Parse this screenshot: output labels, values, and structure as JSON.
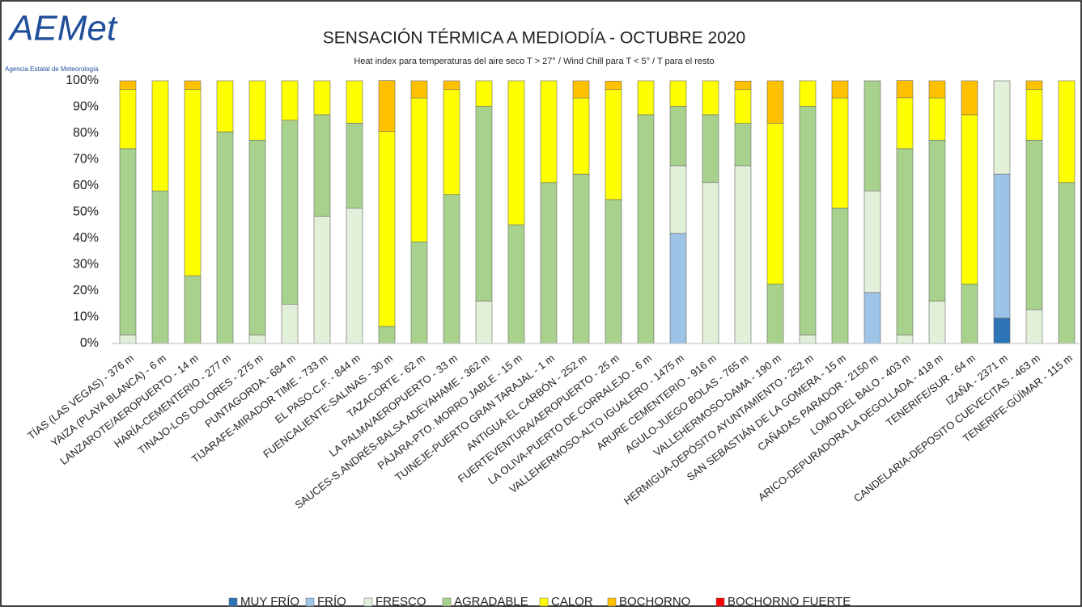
{
  "logo": {
    "name": "AEMet",
    "subtitle": "Agencia Estatal de Meteorología"
  },
  "chart_data": {
    "type": "stacked_bar",
    "title": "SENSACIÓN TÉRMICA A MEDIODÍA - OCTUBRE 2020",
    "subtitle": "Heat index para temperaturas del aire seco T > 27° / Wind Chill para T < 5° / T para el resto",
    "categories": [
      "TÍAS (LAS VEGAS) - 376 m",
      "YAIZA (PLAYA BLANCA) - 6 m",
      "LANZAROTE/AEROPUERTO - 14 m",
      "HARÍA-CEMENTERIO - 277 m",
      "TINAJO-LOS DOLORES - 275 m",
      "PUNTAGORDA - 684 m",
      "TIJARAFE-MIRADOR TIME - 733 m",
      "EL PASO-C.F. - 844 m",
      "FUENCALIENTE-SALINAS - 30 m",
      "TAZACORTE - 62 m",
      "LA PALMA/AEROPUERTO - 33 m",
      "SAUCES-S.ANDRÉS-BALSA ADEYAHAME - 362 m",
      "PÁJARA-PTO. MORRO JABLE - 15 m",
      "TUINEJE-PUERTO GRAN TARAJAL - 1 m",
      "ANTIGUA-EL CARBÓN - 252 m",
      "FUERTEVENTURA/AEROPUERTO - 25 m",
      "LA OLIVA-PUERTO DE CORRALEJO - 6 m",
      "VALLEHERMOSO-ALTO IGUALERO - 1475 m",
      "ARURE CEMENTERIO - 916 m",
      "AGULO-JUEGO BOLAS - 765 m",
      "VALLEHERMOSO-DAMA - 190 m",
      "HERMIGUA-DEPÓSITO AYUNTAMIENTO - 252 m",
      "SAN SEBASTIÁN DE LA GOMERA - 15 m",
      "CAÑADAS PARADOR - 2150 m",
      "LOMO DEL BALO - 403 m",
      "ARICO-DEPURADORA LA DEGOLLADA - 418 m",
      "TENERIFE/SUR - 64 m",
      "IZAÑA - 2371 m",
      "CANDELARIA-DEPOSITO CUEVECITAS - 463 m",
      "TENERIFE-GÜÍMAR - 115 m"
    ],
    "series": [
      {
        "name": "MUY FRÍO",
        "color": "#2e75b6",
        "values": [
          0,
          0,
          0,
          0,
          0,
          0,
          0,
          0,
          0,
          0,
          0,
          0,
          0,
          0,
          0,
          0,
          0,
          0,
          0,
          0,
          0,
          0,
          0,
          0,
          0,
          0,
          0,
          9.7,
          0,
          0
        ]
      },
      {
        "name": "FRÍO",
        "color": "#9dc3e6",
        "values": [
          0,
          0,
          0,
          0,
          0,
          0,
          0,
          0,
          0,
          0,
          0,
          0,
          0,
          0,
          0,
          0,
          0,
          41.9,
          0,
          0,
          0,
          0,
          0,
          19.4,
          0,
          0,
          0,
          54.8,
          0,
          0
        ]
      },
      {
        "name": "FRESCO",
        "color": "#e2f0d9",
        "values": [
          3.2,
          0,
          0,
          0,
          3.2,
          15,
          48.4,
          51.6,
          0,
          0,
          0,
          16.1,
          0,
          0,
          0,
          0,
          0,
          25.8,
          61.3,
          67.7,
          0,
          3.2,
          0,
          38.7,
          3.2,
          16.1,
          0,
          35.5,
          12.9,
          0
        ]
      },
      {
        "name": "AGRADABLE",
        "color": "#a9d18e",
        "values": [
          71,
          58.1,
          25.8,
          80.6,
          74.2,
          70,
          38.7,
          32.3,
          6.5,
          38.7,
          56.7,
          74.2,
          45.2,
          61.3,
          64.5,
          54.8,
          87.1,
          22.6,
          25.8,
          16.1,
          22.6,
          87.1,
          51.6,
          41.9,
          71,
          61.3,
          22.6,
          0,
          64.5,
          61.3
        ]
      },
      {
        "name": "CALOR",
        "color": "#ffff00",
        "values": [
          22.6,
          41.9,
          71,
          19.4,
          22.6,
          15,
          12.9,
          16.1,
          74.2,
          54.8,
          40,
          9.7,
          54.8,
          38.7,
          29,
          41.9,
          12.9,
          9.7,
          12.9,
          12.9,
          61.3,
          9.7,
          41.9,
          0,
          19.4,
          16.1,
          64.5,
          0,
          19.4,
          38.7
        ]
      },
      {
        "name": "BOCHORNO",
        "color": "#ffc000",
        "values": [
          3.2,
          0,
          3.2,
          0,
          0,
          0,
          0,
          0,
          19.4,
          6.5,
          3.3,
          0,
          0,
          0,
          6.5,
          3.2,
          0,
          0,
          0,
          3.2,
          16.1,
          0,
          6.5,
          0,
          6.5,
          6.5,
          12.9,
          0,
          3.2,
          0
        ]
      },
      {
        "name": "BOCHORNO FUERTE",
        "color": "#ff0000",
        "values": [
          0,
          0,
          0,
          0,
          0,
          0,
          0,
          0,
          0,
          0,
          0,
          0,
          0,
          0,
          0,
          0,
          0,
          0,
          0,
          0,
          0,
          0,
          0,
          0,
          0,
          0,
          0,
          0,
          0,
          0
        ]
      }
    ],
    "ylim": [
      0,
      100
    ],
    "yticks": [
      {
        "value": 0,
        "label": "0%"
      },
      {
        "value": 10,
        "label": "10%"
      },
      {
        "value": 20,
        "label": "20%"
      },
      {
        "value": 30,
        "label": "30%"
      },
      {
        "value": 40,
        "label": "40%"
      },
      {
        "value": 50,
        "label": "50%"
      },
      {
        "value": 60,
        "label": "60%"
      },
      {
        "value": 70,
        "label": "70%"
      },
      {
        "value": 80,
        "label": "80%"
      },
      {
        "value": 90,
        "label": "90%"
      },
      {
        "value": 100,
        "label": "100%"
      }
    ],
    "grid": false,
    "legend": "bottom"
  }
}
